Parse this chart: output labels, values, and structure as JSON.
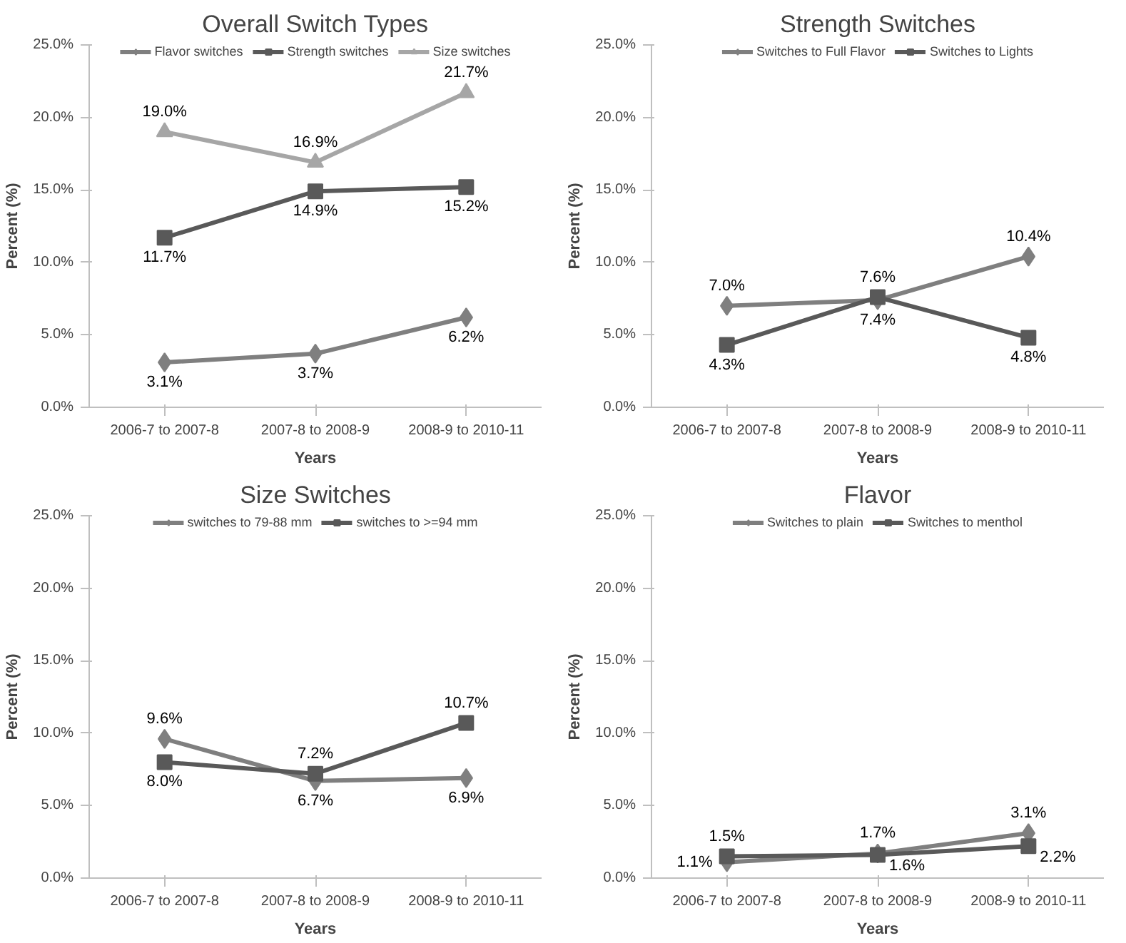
{
  "chart_data": [
    {
      "type": "line",
      "title": "Overall Switch Types",
      "xlabel": "Years",
      "ylabel": "Percent (%)",
      "categories": [
        "2006-7 to 2007-8",
        "2007-8 to 2008-9",
        "2008-9 to 2010-11"
      ],
      "ylim": [
        0,
        25
      ],
      "yticks": [
        {
          "value": 0,
          "label": "0.0%"
        },
        {
          "value": 5,
          "label": "5.0%"
        },
        {
          "value": 10,
          "label": "10.0%"
        },
        {
          "value": 15,
          "label": "15.0%"
        },
        {
          "value": 20,
          "label": "20.0%"
        },
        {
          "value": 25,
          "label": "25.0%"
        }
      ],
      "legend": "top",
      "series": [
        {
          "name": "Flavor switches",
          "color": "#7f7f7f",
          "marker": "diamond",
          "values": [
            3.1,
            3.7,
            6.2
          ],
          "value_labels": [
            "3.1%",
            "3.7%",
            "6.2%"
          ]
        },
        {
          "name": "Strength switches",
          "color": "#595959",
          "marker": "square",
          "values": [
            11.7,
            14.9,
            15.2
          ],
          "value_labels": [
            "11.7%",
            "14.9%",
            "15.2%"
          ]
        },
        {
          "name": "Size switches",
          "color": "#a6a6a6",
          "marker": "triangle",
          "values": [
            19.0,
            16.9,
            21.7
          ],
          "value_labels": [
            "19.0%",
            "16.9%",
            "21.7%"
          ]
        }
      ]
    },
    {
      "type": "line",
      "title": "Strength Switches",
      "xlabel": "Years",
      "ylabel": "Percent (%)",
      "categories": [
        "2006-7 to 2007-8",
        "2007-8 to 2008-9",
        "2008-9 to 2010-11"
      ],
      "ylim": [
        0,
        25
      ],
      "yticks": [
        {
          "value": 0,
          "label": "0.0%"
        },
        {
          "value": 5,
          "label": "5.0%"
        },
        {
          "value": 10,
          "label": "10.0%"
        },
        {
          "value": 15,
          "label": "15.0%"
        },
        {
          "value": 20,
          "label": "20.0%"
        },
        {
          "value": 25,
          "label": "25.0%"
        }
      ],
      "legend": "top",
      "series": [
        {
          "name": "Switches to Full Flavor",
          "color": "#7f7f7f",
          "marker": "diamond",
          "values": [
            7.0,
            7.4,
            10.4
          ],
          "value_labels": [
            "7.0%",
            "7.4%",
            "10.4%"
          ]
        },
        {
          "name": "Switches to Lights",
          "color": "#595959",
          "marker": "square",
          "values": [
            4.3,
            7.6,
            4.8
          ],
          "value_labels": [
            "4.3%",
            "7.6%",
            "4.8%"
          ]
        }
      ]
    },
    {
      "type": "line",
      "title": "Size Switches",
      "xlabel": "Years",
      "ylabel": "Percent (%)",
      "categories": [
        "2006-7 to 2007-8",
        "2007-8 to 2008-9",
        "2008-9 to 2010-11"
      ],
      "ylim": [
        0,
        25
      ],
      "yticks": [
        {
          "value": 0,
          "label": "0.0%"
        },
        {
          "value": 5,
          "label": "5.0%"
        },
        {
          "value": 10,
          "label": "10.0%"
        },
        {
          "value": 15,
          "label": "15.0%"
        },
        {
          "value": 20,
          "label": "20.0%"
        },
        {
          "value": 25,
          "label": "25.0%"
        }
      ],
      "legend": "top",
      "series": [
        {
          "name": "switches to 79-88 mm",
          "color": "#7f7f7f",
          "marker": "diamond",
          "values": [
            9.6,
            6.7,
            6.9
          ],
          "value_labels": [
            "9.6%",
            "6.7%",
            "6.9%"
          ]
        },
        {
          "name": "switches to >=94 mm",
          "color": "#595959",
          "marker": "square",
          "values": [
            8.0,
            7.2,
            10.7
          ],
          "value_labels": [
            "8.0%",
            "7.2%",
            "10.7%"
          ]
        }
      ]
    },
    {
      "type": "line",
      "title": "Flavor",
      "xlabel": "Years",
      "ylabel": "Percent (%)",
      "categories": [
        "2006-7 to 2007-8",
        "2007-8 to 2008-9",
        "2008-9 to 2010-11"
      ],
      "ylim": [
        0,
        25
      ],
      "yticks": [
        {
          "value": 0,
          "label": "0.0%"
        },
        {
          "value": 5,
          "label": "5.0%"
        },
        {
          "value": 10,
          "label": "10.0%"
        },
        {
          "value": 15,
          "label": "15.0%"
        },
        {
          "value": 20,
          "label": "20.0%"
        },
        {
          "value": 25,
          "label": "25.0%"
        }
      ],
      "legend": "top",
      "series": [
        {
          "name": "Switches to plain",
          "color": "#7f7f7f",
          "marker": "diamond",
          "values": [
            1.1,
            1.7,
            3.1
          ],
          "value_labels": [
            "1.1%",
            "1.7%",
            "3.1%"
          ]
        },
        {
          "name": "Switches to menthol",
          "color": "#595959",
          "marker": "square",
          "values": [
            1.5,
            1.6,
            2.2
          ],
          "value_labels": [
            "1.5%",
            "1.6%",
            "2.2%"
          ]
        }
      ]
    }
  ]
}
